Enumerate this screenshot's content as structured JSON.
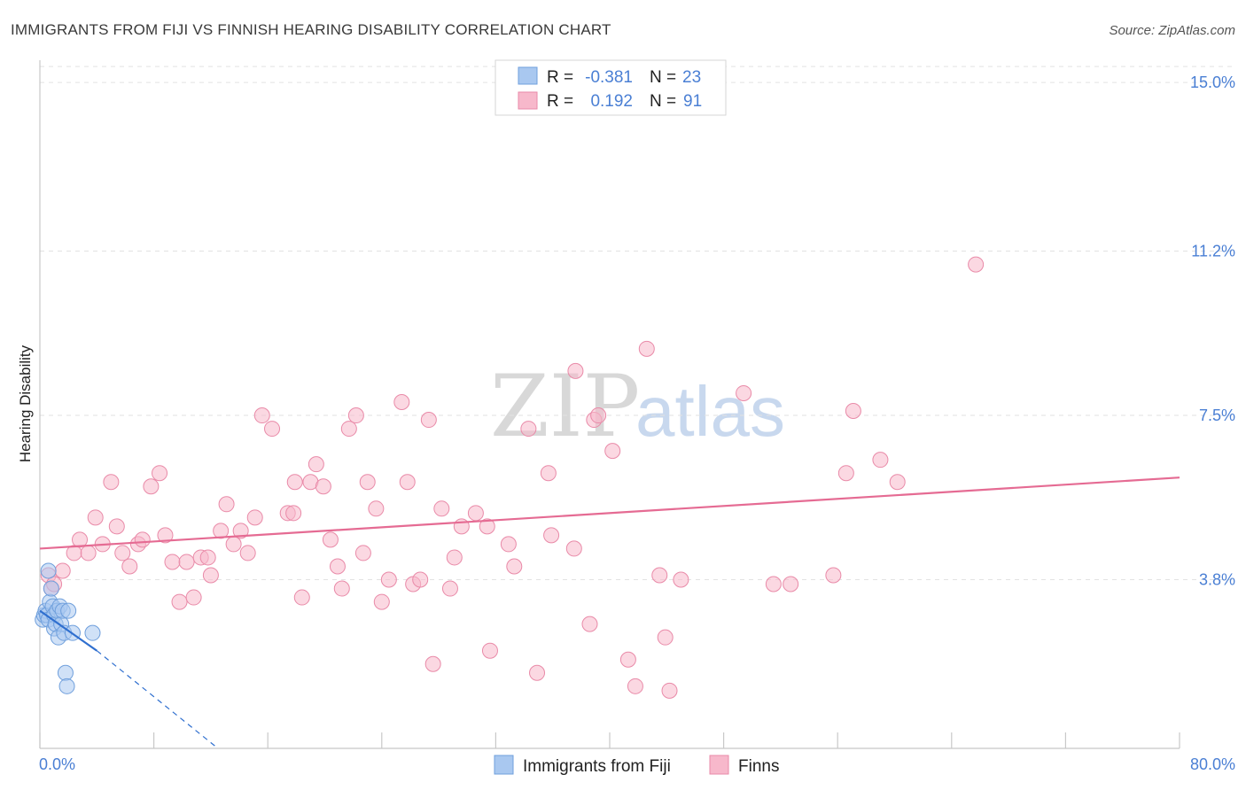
{
  "chart_data": {
    "type": "scatter",
    "title": "IMMIGRANTS FROM FIJI VS FINNISH HEARING DISABILITY CORRELATION CHART",
    "source": "Source: ZipAtlas.com",
    "ylabel": "Hearing Disability",
    "xlabel": "",
    "xlim": [
      0,
      80
    ],
    "ylim": [
      0.0,
      15.5
    ],
    "x_tick_labels": [
      "0.0%",
      "80.0%"
    ],
    "y_ticks": [
      {
        "value": 3.8,
        "label": "3.8%"
      },
      {
        "value": 7.5,
        "label": "7.5%"
      },
      {
        "value": 11.2,
        "label": "11.2%"
      },
      {
        "value": 15.0,
        "label": "15.0%"
      }
    ],
    "watermark": {
      "zip": "ZIP",
      "atlas": "atlas"
    },
    "legend_stats": [
      {
        "r_label": "R =",
        "r_value": "-0.381",
        "n_label": "N =",
        "n_value": "23",
        "color": "#a9c8f0"
      },
      {
        "r_label": "R =",
        "r_value": "0.192",
        "n_label": "N =",
        "n_value": "91",
        "color": "#f7b8cb"
      }
    ],
    "series": [
      {
        "name": "Immigrants from Fiji",
        "color": "#a9c8f0",
        "stroke": "#6f9fdc",
        "trend": {
          "x0": 0.0,
          "y0": 3.1,
          "x1": 4.0,
          "y1": 2.2,
          "dash_to_x": 12.5,
          "dash_to_y": 0.0,
          "color": "#2f6fcf"
        },
        "points": [
          [
            0.2,
            2.9
          ],
          [
            0.3,
            3.0
          ],
          [
            0.4,
            3.1
          ],
          [
            0.5,
            3.0
          ],
          [
            0.6,
            2.9
          ],
          [
            0.7,
            3.3
          ],
          [
            0.8,
            3.6
          ],
          [
            0.9,
            3.2
          ],
          [
            1.0,
            3.0
          ],
          [
            1.0,
            2.7
          ],
          [
            1.1,
            2.8
          ],
          [
            1.2,
            3.1
          ],
          [
            1.3,
            2.5
          ],
          [
            1.4,
            3.2
          ],
          [
            1.5,
            2.8
          ],
          [
            1.6,
            3.1
          ],
          [
            1.7,
            2.6
          ],
          [
            1.8,
            1.7
          ],
          [
            1.9,
            1.4
          ],
          [
            2.0,
            3.1
          ],
          [
            2.3,
            2.6
          ],
          [
            3.7,
            2.6
          ],
          [
            0.6,
            4.0
          ]
        ]
      },
      {
        "name": "Finns",
        "color": "#f7b8cb",
        "stroke": "#e98aa8",
        "trend": {
          "x0": 0.0,
          "y0": 4.5,
          "x1": 80.0,
          "y1": 6.1,
          "color": "#e56b93"
        },
        "points": [
          [
            0.6,
            3.9
          ],
          [
            0.8,
            3.6
          ],
          [
            1.0,
            3.7
          ],
          [
            1.6,
            4.0
          ],
          [
            2.4,
            4.4
          ],
          [
            2.8,
            4.7
          ],
          [
            3.4,
            4.4
          ],
          [
            3.9,
            5.2
          ],
          [
            4.4,
            4.6
          ],
          [
            5.0,
            6.0
          ],
          [
            5.4,
            5.0
          ],
          [
            5.8,
            4.4
          ],
          [
            6.3,
            4.1
          ],
          [
            6.9,
            4.6
          ],
          [
            7.2,
            4.7
          ],
          [
            7.8,
            5.9
          ],
          [
            8.4,
            6.2
          ],
          [
            8.8,
            4.8
          ],
          [
            9.3,
            4.2
          ],
          [
            9.8,
            3.3
          ],
          [
            10.3,
            4.2
          ],
          [
            10.8,
            3.4
          ],
          [
            11.3,
            4.3
          ],
          [
            11.8,
            4.3
          ],
          [
            12.0,
            3.9
          ],
          [
            12.7,
            4.9
          ],
          [
            13.1,
            5.5
          ],
          [
            13.6,
            4.6
          ],
          [
            14.1,
            4.9
          ],
          [
            14.6,
            4.4
          ],
          [
            15.1,
            5.2
          ],
          [
            15.6,
            7.5
          ],
          [
            16.3,
            7.2
          ],
          [
            17.4,
            5.3
          ],
          [
            17.8,
            5.3
          ],
          [
            17.9,
            6.0
          ],
          [
            18.4,
            3.4
          ],
          [
            19.0,
            6.0
          ],
          [
            19.4,
            6.4
          ],
          [
            19.9,
            5.9
          ],
          [
            20.4,
            4.7
          ],
          [
            20.9,
            4.1
          ],
          [
            21.2,
            3.6
          ],
          [
            21.7,
            7.2
          ],
          [
            22.2,
            7.5
          ],
          [
            22.7,
            4.4
          ],
          [
            23.0,
            6.0
          ],
          [
            23.6,
            5.4
          ],
          [
            24.0,
            3.3
          ],
          [
            24.5,
            3.8
          ],
          [
            25.4,
            7.8
          ],
          [
            25.8,
            6.0
          ],
          [
            26.2,
            3.7
          ],
          [
            26.7,
            3.8
          ],
          [
            27.3,
            7.4
          ],
          [
            27.6,
            1.9
          ],
          [
            28.2,
            5.4
          ],
          [
            28.8,
            3.6
          ],
          [
            29.1,
            4.3
          ],
          [
            29.6,
            5.0
          ],
          [
            30.6,
            5.3
          ],
          [
            31.4,
            5.0
          ],
          [
            31.6,
            2.2
          ],
          [
            32.9,
            4.6
          ],
          [
            33.3,
            4.1
          ],
          [
            34.3,
            7.2
          ],
          [
            34.9,
            1.7
          ],
          [
            35.7,
            6.2
          ],
          [
            35.9,
            4.8
          ],
          [
            37.6,
            8.5
          ],
          [
            37.5,
            4.5
          ],
          [
            38.6,
            2.8
          ],
          [
            38.9,
            7.4
          ],
          [
            39.2,
            7.5
          ],
          [
            40.2,
            6.7
          ],
          [
            41.3,
            2.0
          ],
          [
            41.8,
            1.4
          ],
          [
            42.6,
            9.0
          ],
          [
            43.5,
            3.9
          ],
          [
            43.9,
            2.5
          ],
          [
            44.2,
            1.3
          ],
          [
            45.0,
            3.8
          ],
          [
            49.4,
            8.0
          ],
          [
            51.5,
            3.7
          ],
          [
            52.7,
            3.7
          ],
          [
            55.7,
            3.9
          ],
          [
            56.6,
            6.2
          ],
          [
            57.1,
            7.6
          ],
          [
            59.0,
            6.5
          ],
          [
            60.2,
            6.0
          ],
          [
            65.7,
            10.9
          ]
        ]
      }
    ]
  },
  "bottom_legend": [
    {
      "label": "Immigrants from Fiji",
      "color": "#a9c8f0"
    },
    {
      "label": "Finns",
      "color": "#f7b8cb"
    }
  ]
}
